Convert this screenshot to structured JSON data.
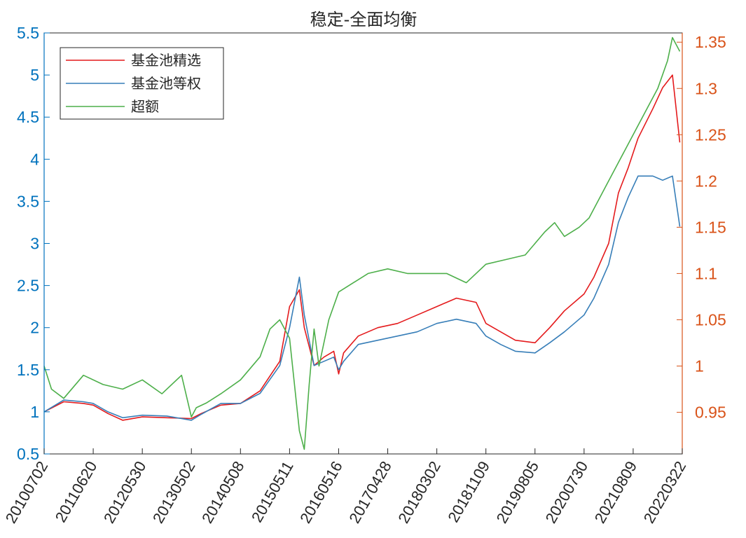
{
  "chart_data": {
    "type": "line",
    "title": "稳定-全面均衡",
    "xlabel": "",
    "colors": {
      "left_axis": "#0072BD",
      "right_axis": "#D95319",
      "axes": "#262626"
    },
    "x_tick_labels": [
      "20100702",
      "20110620",
      "20120530",
      "20130502",
      "20140508",
      "20150511",
      "20160516",
      "20170428",
      "20180302",
      "20181109",
      "20190805",
      "20200730",
      "20210809",
      "20220322"
    ],
    "left_axis": {
      "ylim": [
        0.5,
        5.5
      ],
      "ticks": [
        "0.5",
        "1",
        "1.5",
        "2",
        "2.5",
        "3",
        "3.5",
        "4",
        "4.5",
        "5",
        "5.5"
      ],
      "tick_values": [
        0.5,
        1,
        1.5,
        2,
        2.5,
        3,
        3.5,
        4,
        4.5,
        5,
        5.5
      ]
    },
    "right_axis": {
      "ylim": [
        0.905,
        1.36
      ],
      "ticks": [
        "0.95",
        "1",
        "1.05",
        "1.1",
        "1.15",
        "1.2",
        "1.25",
        "1.3",
        "1.35"
      ],
      "tick_values": [
        0.95,
        1,
        1.05,
        1.1,
        1.15,
        1.2,
        1.25,
        1.3,
        1.35
      ]
    },
    "legend": {
      "placement": "top-left"
    },
    "series": [
      {
        "name": "基金池精选",
        "axis": "left",
        "color": "#E41A1C",
        "x": [
          0,
          0.4,
          0.8,
          1.0,
          1.3,
          1.6,
          2.0,
          2.5,
          3.0,
          3.2,
          3.6,
          4.0,
          4.4,
          4.8,
          5.0,
          5.2,
          5.3,
          5.5,
          5.7,
          5.9,
          6.0,
          6.1,
          6.4,
          6.8,
          7.2,
          7.6,
          8.0,
          8.4,
          8.8,
          9.0,
          9.3,
          9.6,
          10.0,
          10.3,
          10.6,
          11.0,
          11.2,
          11.5,
          11.7,
          11.9,
          12.1,
          12.4,
          12.6,
          12.8,
          12.95
        ],
        "values": [
          1.0,
          1.12,
          1.1,
          1.08,
          0.98,
          0.9,
          0.94,
          0.93,
          0.92,
          0.98,
          1.08,
          1.1,
          1.25,
          1.6,
          2.25,
          2.45,
          2.0,
          1.55,
          1.65,
          1.72,
          1.45,
          1.7,
          1.9,
          2.0,
          2.05,
          2.15,
          2.25,
          2.35,
          2.3,
          2.05,
          1.95,
          1.85,
          1.82,
          2.0,
          2.2,
          2.4,
          2.6,
          3.0,
          3.6,
          3.9,
          4.25,
          4.6,
          4.85,
          5.0,
          4.2
        ]
      },
      {
        "name": "基金池等权",
        "axis": "left",
        "color": "#377EB8",
        "x": [
          0,
          0.4,
          0.8,
          1.0,
          1.3,
          1.6,
          2.0,
          2.5,
          3.0,
          3.2,
          3.6,
          4.0,
          4.4,
          4.8,
          5.0,
          5.2,
          5.3,
          5.5,
          5.7,
          5.9,
          6.0,
          6.1,
          6.4,
          6.8,
          7.2,
          7.6,
          8.0,
          8.4,
          8.8,
          9.0,
          9.3,
          9.6,
          10.0,
          10.3,
          10.6,
          11.0,
          11.2,
          11.5,
          11.7,
          11.9,
          12.1,
          12.4,
          12.6,
          12.8,
          12.95
        ],
        "values": [
          1.0,
          1.14,
          1.12,
          1.1,
          1.0,
          0.93,
          0.96,
          0.95,
          0.9,
          0.97,
          1.1,
          1.1,
          1.22,
          1.55,
          2.0,
          2.6,
          2.15,
          1.55,
          1.6,
          1.65,
          1.5,
          1.6,
          1.8,
          1.85,
          1.9,
          1.95,
          2.05,
          2.1,
          2.05,
          1.9,
          1.8,
          1.72,
          1.7,
          1.82,
          1.95,
          2.15,
          2.35,
          2.75,
          3.25,
          3.55,
          3.8,
          3.8,
          3.75,
          3.8,
          3.2
        ]
      },
      {
        "name": "超额",
        "axis": "right",
        "color": "#4DAF4A",
        "x": [
          0,
          0.15,
          0.4,
          0.8,
          1.2,
          1.6,
          2.0,
          2.4,
          2.8,
          3.0,
          3.1,
          3.3,
          3.6,
          4.0,
          4.4,
          4.6,
          4.8,
          5.0,
          5.2,
          5.3,
          5.4,
          5.5,
          5.6,
          5.8,
          6.0,
          6.3,
          6.6,
          7.0,
          7.4,
          7.8,
          8.2,
          8.6,
          9.0,
          9.4,
          9.8,
          10.2,
          10.4,
          10.6,
          10.9,
          11.1,
          11.3,
          11.5,
          11.7,
          11.9,
          12.1,
          12.3,
          12.5,
          12.7,
          12.8,
          12.95
        ],
        "values": [
          1.0,
          0.975,
          0.965,
          0.99,
          0.98,
          0.975,
          0.985,
          0.97,
          0.99,
          0.945,
          0.955,
          0.96,
          0.97,
          0.985,
          1.01,
          1.04,
          1.05,
          1.03,
          0.93,
          0.91,
          0.98,
          1.04,
          1.0,
          1.05,
          1.08,
          1.09,
          1.1,
          1.105,
          1.1,
          1.1,
          1.1,
          1.09,
          1.11,
          1.115,
          1.12,
          1.145,
          1.155,
          1.14,
          1.15,
          1.16,
          1.18,
          1.2,
          1.22,
          1.24,
          1.26,
          1.28,
          1.3,
          1.33,
          1.355,
          1.34
        ]
      }
    ]
  }
}
